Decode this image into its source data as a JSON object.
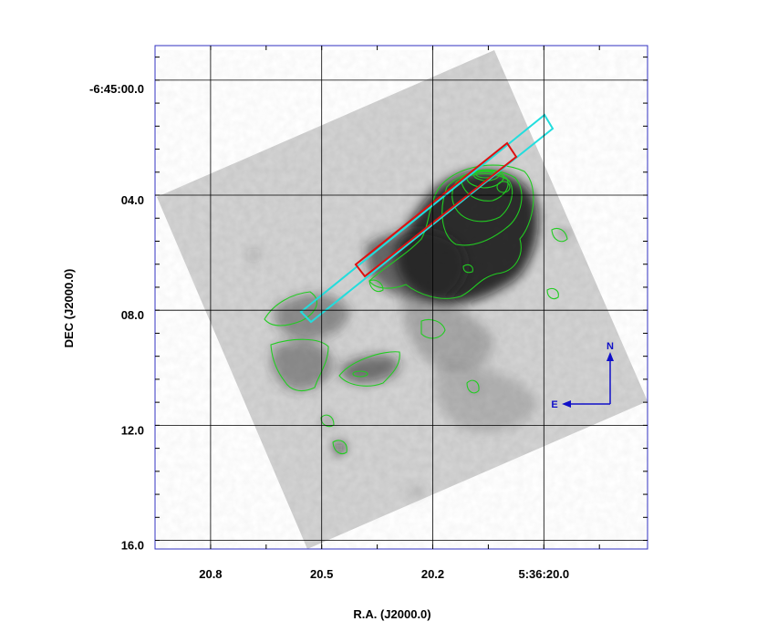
{
  "chart_data": {
    "type": "image",
    "title": "",
    "xlabel": "R.A. (J2000.0)",
    "ylabel": "DEC (J2000.0)",
    "x_ticks": [
      {
        "label": "20.8",
        "value": 20.8
      },
      {
        "label": "20.5",
        "value": 20.5
      },
      {
        "label": "20.2",
        "value": 20.2
      },
      {
        "label": "5:36:20.0",
        "value": 19.9
      }
    ],
    "y_ticks": [
      {
        "label": "-6:45:00.0",
        "value": 0
      },
      {
        "label": "04.0",
        "value": 4
      },
      {
        "label": "08.0",
        "value": 8
      },
      {
        "label": "12.0",
        "value": 12
      },
      {
        "label": "16.0",
        "value": 16
      }
    ],
    "xlim": [
      20.95,
      19.62
    ],
    "ylim": [
      16.3,
      -1.2
    ],
    "grid": true,
    "compass": {
      "north": "N",
      "east": "E"
    },
    "colors": {
      "frame": "#3030c0",
      "grid": "#000000",
      "contours": "#22cc22",
      "slit_red": "#dd1010",
      "slit_cyan": "#22dddd",
      "compass": "#1010c8"
    }
  }
}
